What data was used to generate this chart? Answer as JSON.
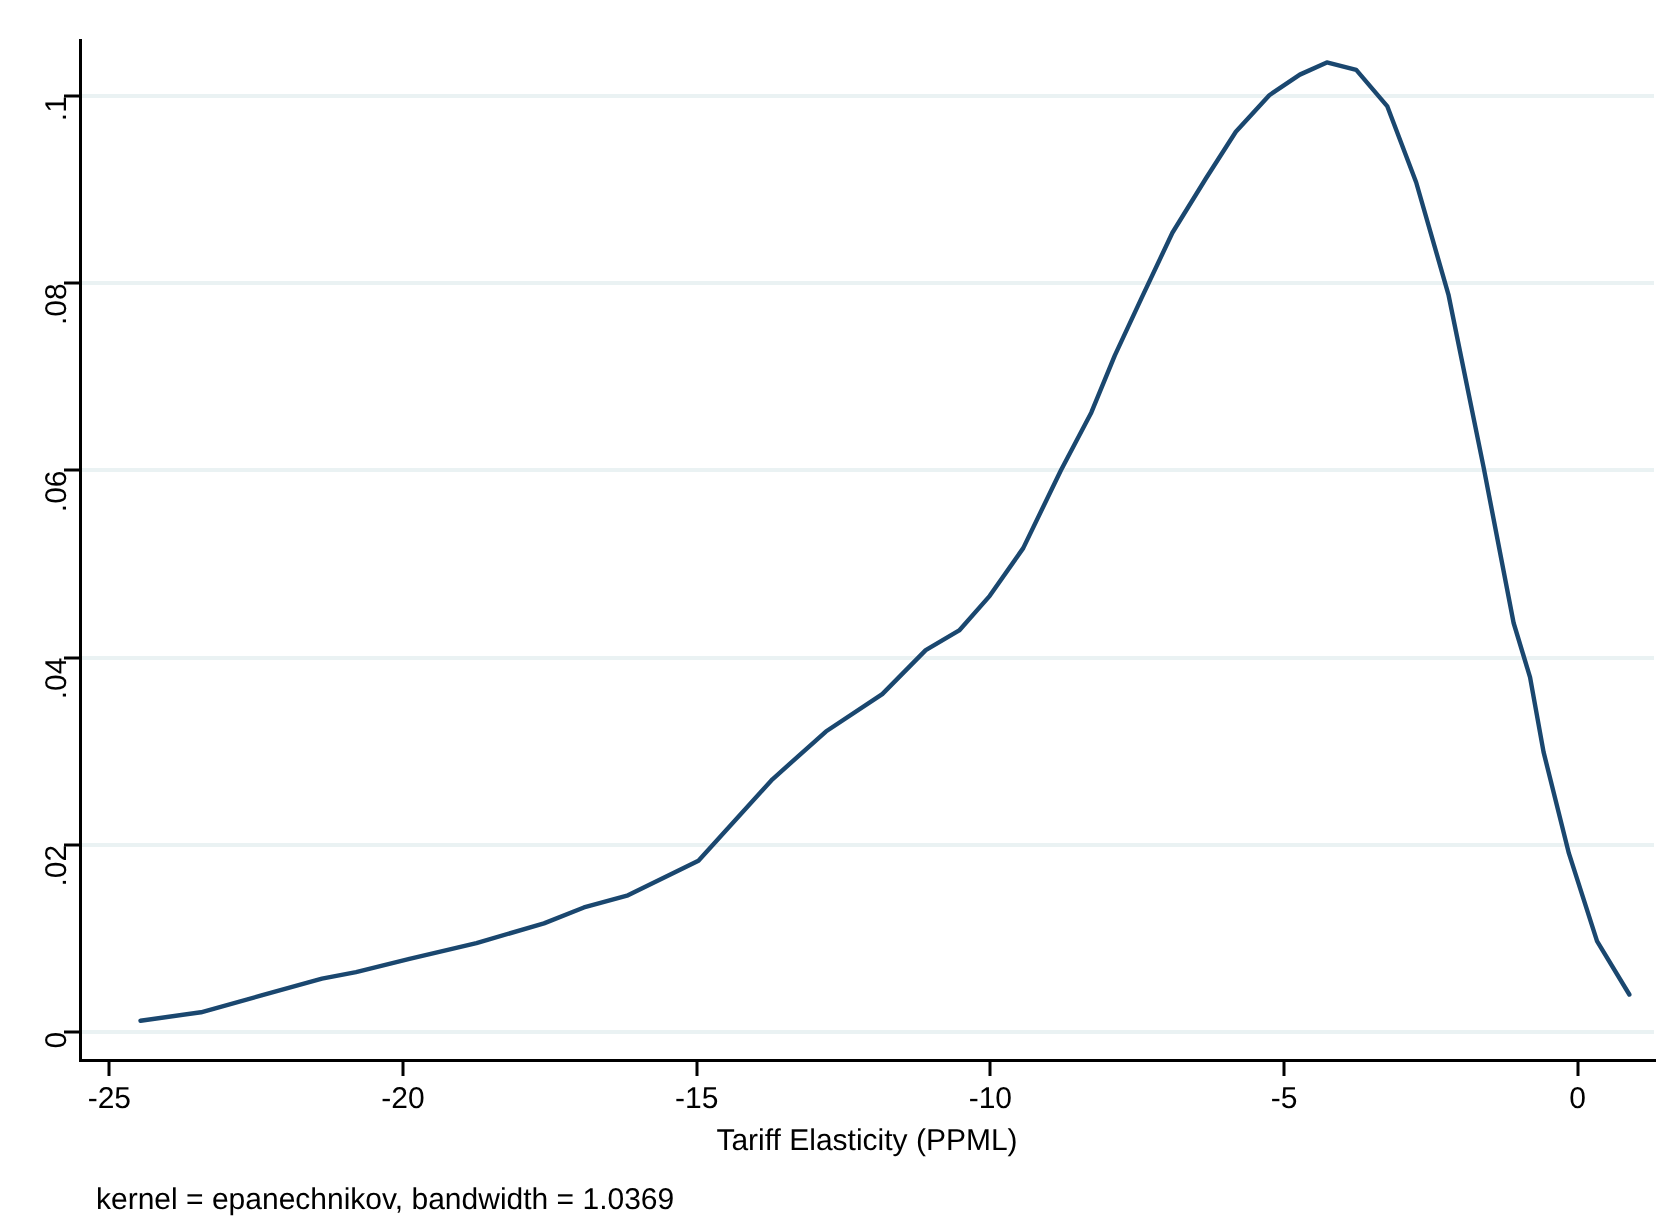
{
  "chart_data": {
    "type": "line",
    "xlabel": "Tariff Elasticity (PPML)",
    "annotations": [
      "kernel = epanechnikov, bandwidth = 1.0369"
    ],
    "x": [
      -24.47,
      -23.44,
      -22.41,
      -21.38,
      -20.8,
      -19.89,
      -18.75,
      -17.6,
      -16.92,
      -16.17,
      -14.97,
      -13.71,
      -12.8,
      -11.84,
      -11.1,
      -10.53,
      -10.01,
      -9.44,
      -8.8,
      -8.28,
      -7.88,
      -7.42,
      -6.9,
      -6.33,
      -5.82,
      -5.25,
      -4.73,
      -4.27,
      -3.77,
      -3.24,
      -2.75,
      -2.2,
      -1.6,
      -1.09,
      -0.81,
      -0.58,
      -0.15,
      0.33,
      0.88
    ],
    "series": [
      {
        "color": "#1a476f",
        "values": [
          0.0012,
          0.0021,
          0.0039,
          0.0057,
          0.0064,
          0.0078,
          0.0095,
          0.0116,
          0.0133,
          0.0146,
          0.0183,
          0.027,
          0.0321,
          0.0361,
          0.0408,
          0.0429,
          0.0466,
          0.0517,
          0.06,
          0.0662,
          0.0723,
          0.0785,
          0.0854,
          0.0912,
          0.0962,
          0.1001,
          0.1023,
          0.1036,
          0.1028,
          0.0989,
          0.0908,
          0.0788,
          0.0603,
          0.0437,
          0.0379,
          0.0299,
          0.0191,
          0.0097,
          0.004
        ]
      }
    ],
    "xlim": [
      -25.5,
      1.3
    ],
    "xticks": [
      -25,
      -20,
      -15,
      -10,
      -5,
      0
    ],
    "ylim": [
      -0.003,
      0.106
    ],
    "yticks": [
      {
        "value": 0,
        "label": "0"
      },
      {
        "value": 0.02,
        "label": ".02"
      },
      {
        "value": 0.04,
        "label": ".04"
      },
      {
        "value": 0.06,
        "label": ".06"
      },
      {
        "value": 0.08,
        "label": ".08"
      },
      {
        "value": 0.1,
        "label": ".1"
      }
    ],
    "grid": "y",
    "legend": false,
    "marker": "none",
    "line_style": "solid"
  }
}
